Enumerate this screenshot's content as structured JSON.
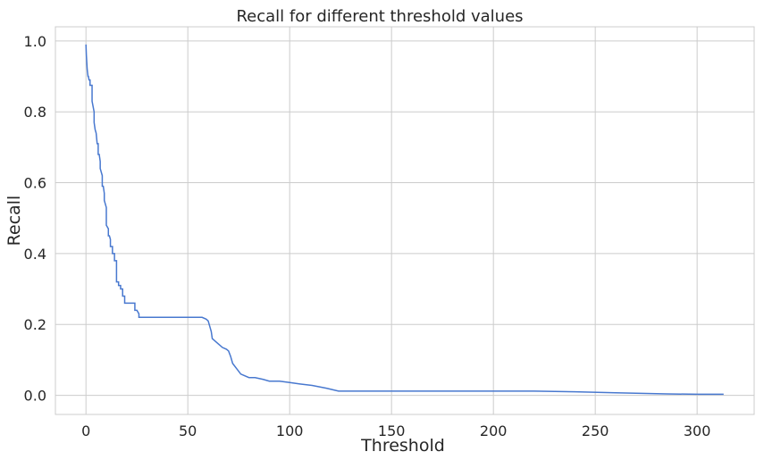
{
  "chart_data": {
    "type": "line",
    "title": "Recall for different threshold values",
    "xlabel": "Threshold",
    "ylabel": "Recall",
    "xlim": [
      -15,
      328
    ],
    "ylim": [
      -0.054,
      1.04
    ],
    "xticks": [
      0,
      50,
      100,
      150,
      200,
      250,
      300
    ],
    "xtick_labels": [
      "0",
      "50",
      "100",
      "150",
      "200",
      "250",
      "300"
    ],
    "yticks": [
      0.0,
      0.2,
      0.4,
      0.6,
      0.8,
      1.0
    ],
    "ytick_labels": [
      "0.0",
      "0.2",
      "0.4",
      "0.6",
      "0.8",
      "1.0"
    ],
    "grid": true,
    "line_color": "#4878cf",
    "series": [
      {
        "x": [
          0,
          0.2,
          0.4,
          0.6,
          0.8,
          1.0,
          1.2,
          1.5,
          2,
          2,
          3,
          3,
          4,
          4,
          4.5,
          5,
          5.5,
          6,
          6,
          6.5,
          7,
          7,
          8,
          8,
          8.5,
          9,
          9,
          10,
          10,
          11,
          11,
          11.5,
          12,
          12,
          13,
          13,
          14,
          14,
          15,
          15,
          16,
          16,
          17,
          17,
          18,
          18,
          19,
          19,
          21,
          21,
          24,
          24,
          25,
          26,
          26,
          40,
          57,
          59,
          60,
          61,
          61.5,
          62,
          63,
          65,
          67,
          69,
          70,
          71,
          72,
          74,
          76,
          80,
          83,
          87,
          90,
          95,
          100,
          105,
          111,
          118,
          124,
          150,
          200,
          220,
          240,
          260,
          285,
          300,
          313
        ],
        "y": [
          0.99,
          0.96,
          0.94,
          0.92,
          0.91,
          0.9,
          0.9,
          0.89,
          0.89,
          0.875,
          0.875,
          0.83,
          0.8,
          0.77,
          0.75,
          0.74,
          0.71,
          0.71,
          0.68,
          0.68,
          0.66,
          0.64,
          0.62,
          0.59,
          0.59,
          0.57,
          0.55,
          0.53,
          0.48,
          0.47,
          0.45,
          0.45,
          0.44,
          0.42,
          0.42,
          0.4,
          0.4,
          0.38,
          0.38,
          0.32,
          0.32,
          0.31,
          0.31,
          0.3,
          0.3,
          0.28,
          0.28,
          0.26,
          0.26,
          0.26,
          0.26,
          0.24,
          0.24,
          0.23,
          0.22,
          0.22,
          0.22,
          0.215,
          0.21,
          0.19,
          0.18,
          0.16,
          0.155,
          0.145,
          0.135,
          0.13,
          0.125,
          0.11,
          0.09,
          0.075,
          0.06,
          0.05,
          0.05,
          0.045,
          0.04,
          0.04,
          0.036,
          0.032,
          0.028,
          0.02,
          0.012,
          0.012,
          0.012,
          0.012,
          0.01,
          0.007,
          0.004,
          0.003,
          0.003
        ]
      }
    ]
  }
}
